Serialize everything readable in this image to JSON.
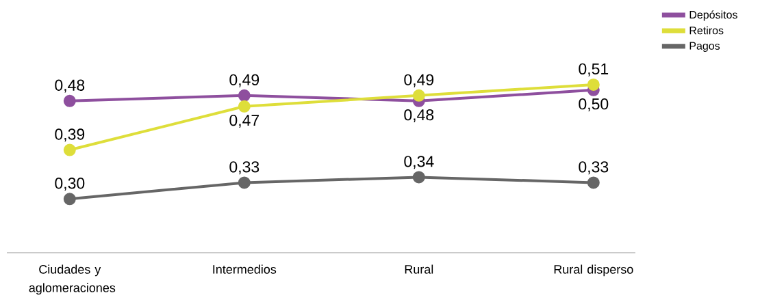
{
  "chart_data": {
    "type": "line",
    "categories": [
      "Ciudades y aglomeraciones",
      "Intermedios",
      "Rural",
      "Rural disperso"
    ],
    "series": [
      {
        "name": "Depósitos",
        "color": "#8e4f9e",
        "values": [
          0.48,
          0.49,
          0.48,
          0.5
        ],
        "value_labels": [
          "0,48",
          "0,49",
          "0,48",
          "0,50"
        ]
      },
      {
        "name": "Retiros",
        "color": "#dede3a",
        "values": [
          0.39,
          0.47,
          0.49,
          0.51
        ],
        "value_labels": [
          "0,39",
          "0,47",
          "0,49",
          "0,51"
        ]
      },
      {
        "name": "Pagos",
        "color": "#666666",
        "values": [
          0.3,
          0.33,
          0.34,
          0.33
        ],
        "value_labels": [
          "0,30",
          "0,33",
          "0,34",
          "0,33"
        ]
      }
    ],
    "legend": "right",
    "marker": "circle",
    "line_style": "solid"
  }
}
